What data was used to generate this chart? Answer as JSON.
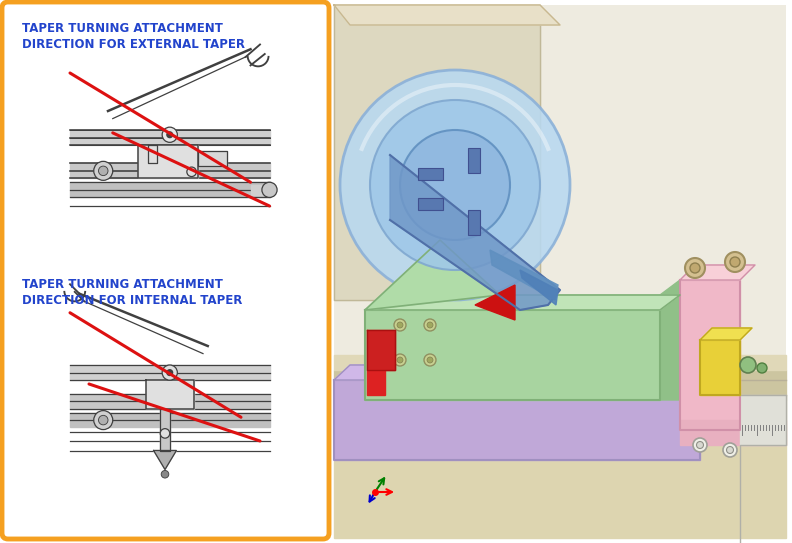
{
  "figsize": [
    7.92,
    5.43
  ],
  "dpi": 100,
  "background_color": "#ffffff",
  "left_panel": {
    "border_color": "#f5a020",
    "border_linewidth": 3,
    "background_color": "#ffffff",
    "text1_line1": "TAPER TURNING ATTACHMENT",
    "text1_line2": "DIRECTION FOR EXTERNAL TAPER",
    "text2_line1": "TAPER TURNING ATTACHMENT",
    "text2_line2": "DIRECTION FOR INTERNAL TAPER",
    "text_color": "#2244cc",
    "text_fontsize": 8.5
  },
  "right_panel": {
    "background_color": "#f0ece0"
  },
  "coord_axes": {
    "red": [
      0.528,
      0.088
    ],
    "green": [
      0.548,
      0.083
    ],
    "blue": [
      0.538,
      0.068
    ]
  }
}
